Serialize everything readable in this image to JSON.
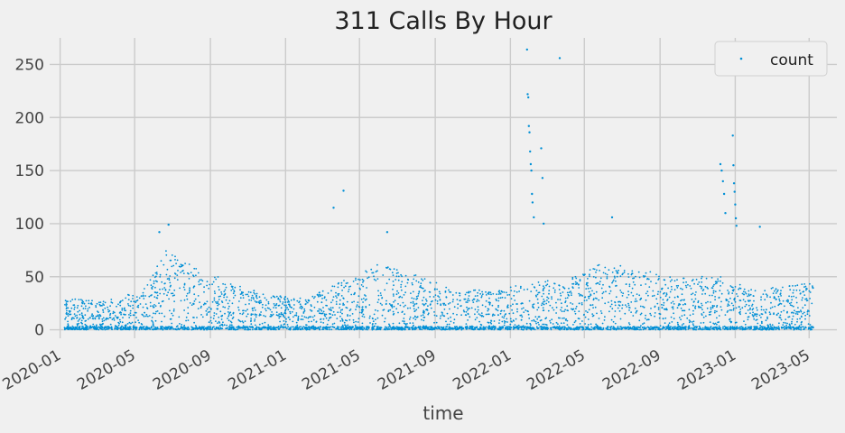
{
  "chart_data": {
    "type": "scatter",
    "title": "311 Calls By Hour",
    "xlabel": "time",
    "ylabel": "",
    "x_range": [
      "2019-12-15",
      "2023-06-15"
    ],
    "ylim": [
      -8,
      275
    ],
    "x_ticks": [
      "2020-01",
      "2020-05",
      "2020-09",
      "2021-01",
      "2021-05",
      "2021-09",
      "2022-01",
      "2022-05",
      "2022-09",
      "2023-01",
      "2023-05"
    ],
    "y_ticks": [
      0,
      50,
      100,
      150,
      200,
      250
    ],
    "grid": true,
    "legend": {
      "placement": "top-right",
      "entries": [
        "count"
      ]
    },
    "series": [
      {
        "name": "count",
        "color": "#008fd5",
        "marker": "dot",
        "date_range": [
          "2020-01-08",
          "2023-05-08"
        ],
        "typical_level": [
          {
            "x": "2020-01-15",
            "y": 20
          },
          {
            "x": "2020-03-15",
            "y": 18
          },
          {
            "x": "2020-05-15",
            "y": 25
          },
          {
            "x": "2020-06-20",
            "y": 50
          },
          {
            "x": "2020-08-01",
            "y": 42
          },
          {
            "x": "2020-10-01",
            "y": 30
          },
          {
            "x": "2020-12-01",
            "y": 22
          },
          {
            "x": "2021-02-01",
            "y": 20
          },
          {
            "x": "2021-04-01",
            "y": 30
          },
          {
            "x": "2021-06-01",
            "y": 42
          },
          {
            "x": "2021-08-01",
            "y": 35
          },
          {
            "x": "2021-10-01",
            "y": 25
          },
          {
            "x": "2021-12-15",
            "y": 25
          },
          {
            "x": "2022-02-01",
            "y": 30
          },
          {
            "x": "2022-04-01",
            "y": 32
          },
          {
            "x": "2022-06-01",
            "y": 42
          },
          {
            "x": "2022-08-01",
            "y": 38
          },
          {
            "x": "2022-10-01",
            "y": 32
          },
          {
            "x": "2022-12-01",
            "y": 35
          },
          {
            "x": "2023-02-01",
            "y": 25
          },
          {
            "x": "2023-05-08",
            "y": 30
          }
        ],
        "spikes": [
          {
            "x": "2021-03-20",
            "y": 115
          },
          {
            "x": "2021-04-05",
            "y": 131
          },
          {
            "x": "2022-01-28",
            "y": 264
          },
          {
            "x": "2022-01-29",
            "y": 222
          },
          {
            "x": "2022-01-30",
            "y": 219
          },
          {
            "x": "2022-01-31",
            "y": 192
          },
          {
            "x": "2022-02-01",
            "y": 186
          },
          {
            "x": "2022-02-02",
            "y": 168
          },
          {
            "x": "2022-02-03",
            "y": 156
          },
          {
            "x": "2022-02-04",
            "y": 150
          },
          {
            "x": "2022-02-05",
            "y": 128
          },
          {
            "x": "2022-02-06",
            "y": 120
          },
          {
            "x": "2022-02-08",
            "y": 106
          },
          {
            "x": "2022-02-20",
            "y": 171
          },
          {
            "x": "2022-02-22",
            "y": 143
          },
          {
            "x": "2022-02-24",
            "y": 100
          },
          {
            "x": "2022-03-22",
            "y": 256
          },
          {
            "x": "2022-06-15",
            "y": 106
          },
          {
            "x": "2022-12-08",
            "y": 156
          },
          {
            "x": "2022-12-10",
            "y": 150
          },
          {
            "x": "2022-12-12",
            "y": 140
          },
          {
            "x": "2022-12-14",
            "y": 128
          },
          {
            "x": "2022-12-16",
            "y": 110
          },
          {
            "x": "2022-12-28",
            "y": 183
          },
          {
            "x": "2022-12-29",
            "y": 155
          },
          {
            "x": "2022-12-30",
            "y": 138
          },
          {
            "x": "2022-12-31",
            "y": 130
          },
          {
            "x": "2023-01-01",
            "y": 118
          },
          {
            "x": "2023-01-02",
            "y": 105
          },
          {
            "x": "2023-01-03",
            "y": 98
          },
          {
            "x": "2023-02-10",
            "y": 97
          },
          {
            "x": "2020-06-25",
            "y": 99
          },
          {
            "x": "2020-06-10",
            "y": 92
          },
          {
            "x": "2021-06-15",
            "y": 92
          }
        ]
      }
    ]
  }
}
